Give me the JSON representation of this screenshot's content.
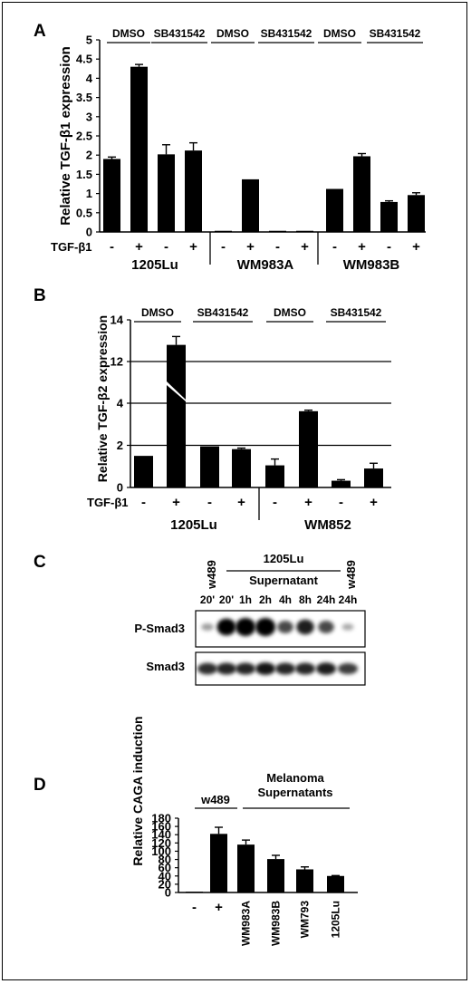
{
  "chart_data": [
    {
      "panel": "A",
      "type": "bar",
      "ylabel": "Relative TGF-β1 expression",
      "ylim": [
        0,
        5
      ],
      "yticks": [
        "0",
        "0.5",
        "1",
        "1.5",
        "2",
        "2.5",
        "3",
        "3.5",
        "4",
        "4.5",
        "5"
      ],
      "treatment_row_label": "TGF-β1",
      "signs": [
        "-",
        "+",
        "-",
        "+",
        "-",
        "+",
        "-",
        "+",
        "-",
        "+",
        "-",
        "+"
      ],
      "values": [
        1.9,
        4.3,
        2.02,
        2.12,
        0.03,
        1.37,
        0.03,
        0.03,
        1.12,
        1.97,
        0.78,
        0.96
      ],
      "errors": [
        0.05,
        0.06,
        0.25,
        0.2,
        0.0,
        0.0,
        0.0,
        0.0,
        0.0,
        0.07,
        0.03,
        0.06
      ],
      "top_groups": [
        "DMSO",
        "SB431542",
        "DMSO",
        "SB431542",
        "DMSO",
        "SB431542"
      ],
      "cell_lines": [
        "1205Lu",
        "WM983A",
        "WM983B"
      ]
    },
    {
      "panel": "B",
      "type": "bar",
      "ylabel": "Relative TGF-β2 expression",
      "yticks": [
        "0",
        "2",
        "4",
        "12",
        "14"
      ],
      "axis_break": "between 4 and 12",
      "treatment_row_label": "TGF-β1",
      "signs": [
        "-",
        "+",
        "-",
        "+",
        "-",
        "+",
        "-",
        "+"
      ],
      "values": [
        1.5,
        12.8,
        1.95,
        1.82,
        1.05,
        3.62,
        0.32,
        0.9
      ],
      "errors": [
        0.0,
        0.4,
        0.0,
        0.05,
        0.3,
        0.05,
        0.05,
        0.25
      ],
      "top_groups": [
        "DMSO",
        "SB431542",
        "DMSO",
        "SB431542"
      ],
      "cell_lines": [
        "1205Lu",
        "WM852"
      ]
    },
    {
      "panel": "D",
      "type": "bar",
      "ylabel": "Relative CAGA induction",
      "ylim": [
        0,
        180
      ],
      "yticks": [
        "0",
        "20",
        "40",
        "60",
        "80",
        "100",
        "120",
        "140",
        "160",
        "180"
      ],
      "categories": [
        "-",
        "+",
        "WM983A",
        "WM983B",
        "WM793",
        "1205Lu"
      ],
      "values": [
        2,
        142,
        116,
        81,
        56,
        40
      ],
      "errors": [
        0,
        16,
        11,
        9,
        6,
        1
      ],
      "group_labels": [
        "w489",
        "Melanoma Supernatants"
      ]
    }
  ],
  "panel_letters": [
    "A",
    "B",
    "C",
    "D"
  ],
  "blot": {
    "header_top": "1205Lu",
    "header_bottom": "Supernatant",
    "left_control": "w489",
    "right_control": "w489",
    "timepoints": [
      "20'",
      "20'",
      "1h",
      "2h",
      "4h",
      "8h",
      "24h",
      "24h"
    ],
    "rows": [
      "P-Smad3",
      "Smad3"
    ],
    "p_smad3_intensity": [
      0.15,
      0.9,
      1.0,
      1.0,
      0.55,
      0.75,
      0.55,
      0.1
    ],
    "smad3_intensity": [
      0.8,
      0.85,
      0.85,
      0.95,
      0.85,
      0.85,
      0.9,
      0.7
    ]
  }
}
